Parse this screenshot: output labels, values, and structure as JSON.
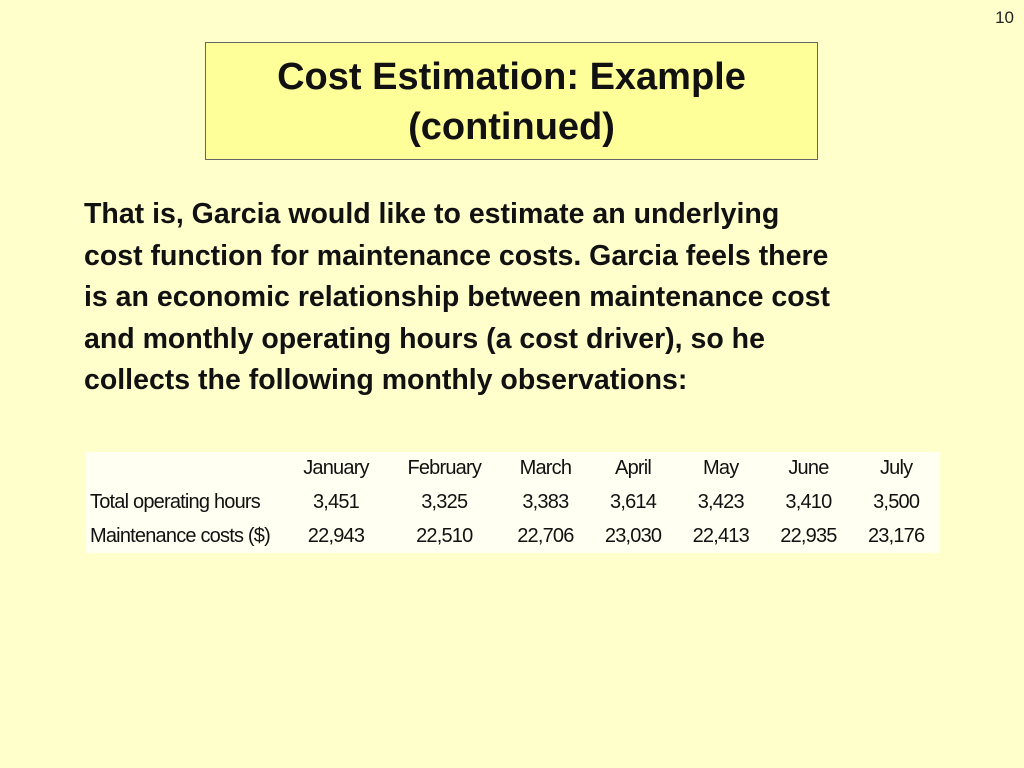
{
  "slide_number": "10",
  "title": {
    "lines": [
      "Cost Estimation: Example",
      "(continued)"
    ]
  },
  "body": {
    "lines": [
      "That is, Garcia would like to estimate an underlying",
      "cost function for maintenance costs. Garcia feels there",
      "is an economic relationship between maintenance cost",
      "and monthly operating hours (a cost driver), so he",
      "collects the following monthly observations:"
    ]
  },
  "table": {
    "header": [
      "January",
      "February",
      "March",
      "April",
      "May",
      "June",
      "July"
    ],
    "rows": [
      {
        "label": "Total operating hours",
        "cells": [
          "3,451",
          "3,325",
          "3,383",
          "3,614",
          "3,423",
          "3,410",
          "3,500"
        ]
      },
      {
        "label": "Maintenance costs ($)",
        "cells": [
          "22,943",
          "22,510",
          "22,706",
          "23,030",
          "22,413",
          "22,935",
          "23,176"
        ]
      }
    ]
  }
}
